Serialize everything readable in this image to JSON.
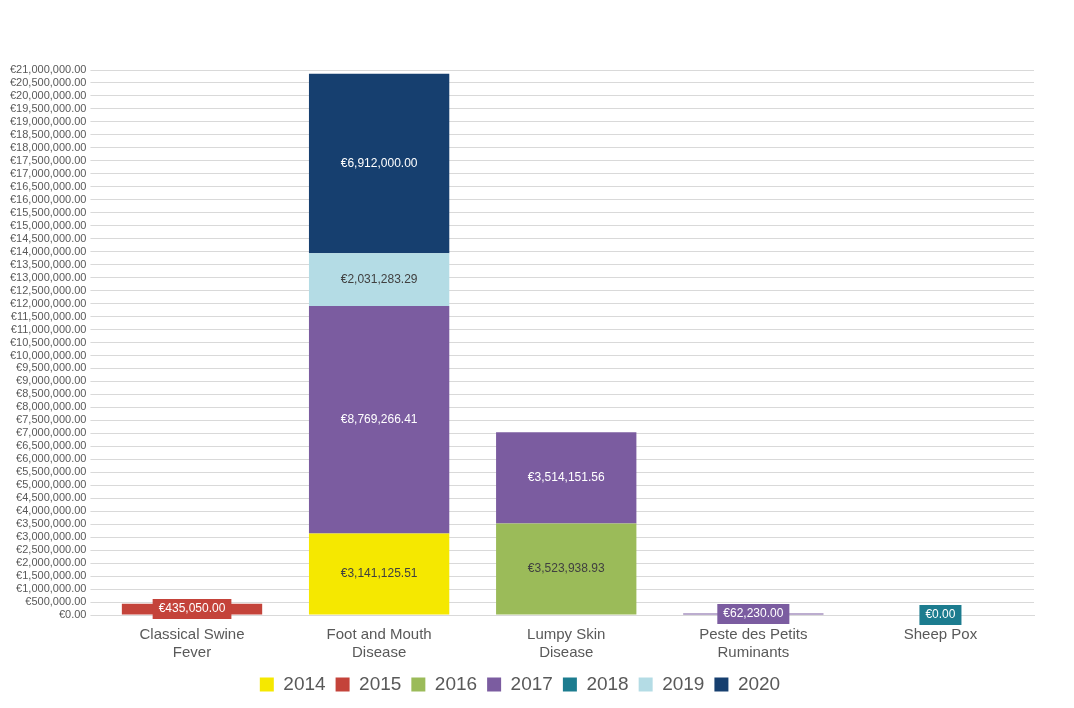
{
  "chart_data": {
    "type": "bar",
    "stacked": true,
    "grid": "y",
    "legend": "bottom",
    "categories": [
      "Classical Swine Fever",
      "Foot and Mouth Disease",
      "Lumpy Skin Disease",
      "Peste des Petits Ruminants",
      "Sheep Pox"
    ],
    "series": [
      {
        "name": "2014",
        "color": "#f5e800",
        "values": [
          null,
          3141125.51,
          null,
          null,
          null
        ],
        "value_labels": [
          null,
          "€3,141,125.51",
          null,
          null,
          null
        ]
      },
      {
        "name": "2015",
        "color": "#c4433a",
        "values": [
          435050,
          null,
          null,
          null,
          null
        ],
        "value_labels": [
          "€435,050.00",
          null,
          null,
          null,
          null
        ]
      },
      {
        "name": "2016",
        "color": "#9bbb59",
        "values": [
          null,
          null,
          3523938.93,
          null,
          null
        ],
        "value_labels": [
          null,
          null,
          "€3,523,938.93",
          null,
          null
        ]
      },
      {
        "name": "2017",
        "color": "#7b5ca0",
        "values": [
          null,
          8769266.41,
          3514151.56,
          62230,
          null
        ],
        "value_labels": [
          null,
          "€8,769,266.41",
          "€3,514,151.56",
          "€62,230.00",
          null
        ]
      },
      {
        "name": "2018",
        "color": "#1c7c8f",
        "values": [
          null,
          null,
          null,
          null,
          0
        ],
        "value_labels": [
          null,
          null,
          null,
          null,
          "€0.00"
        ]
      },
      {
        "name": "2019",
        "color": "#b4dce5",
        "values": [
          null,
          2031283.29,
          null,
          null,
          null
        ],
        "value_labels": [
          null,
          "€2,031,283.29",
          null,
          null,
          null
        ]
      },
      {
        "name": "2020",
        "color": "#163f6f",
        "values": [
          null,
          6912000,
          null,
          null,
          null
        ],
        "value_labels": [
          null,
          "€6,912,000.00",
          null,
          null,
          null
        ]
      }
    ],
    "ylim": [
      0,
      21000000
    ],
    "yticks": [
      {
        "value": 0,
        "label": "€0.00"
      },
      {
        "value": 500000,
        "label": "€500,000.00"
      },
      {
        "value": 1000000,
        "label": "€1,000,000.00"
      },
      {
        "value": 1500000,
        "label": "€1,500,000.00"
      },
      {
        "value": 2000000,
        "label": "€2,000,000.00"
      },
      {
        "value": 2500000,
        "label": "€2,500,000.00"
      },
      {
        "value": 3000000,
        "label": "€3,000,000.00"
      },
      {
        "value": 3500000,
        "label": "€3,500,000.00"
      },
      {
        "value": 4000000,
        "label": "€4,000,000.00"
      },
      {
        "value": 4500000,
        "label": "€4,500,000.00"
      },
      {
        "value": 5000000,
        "label": "€5,000,000.00"
      },
      {
        "value": 5500000,
        "label": "€5,500,000.00"
      },
      {
        "value": 6000000,
        "label": "€6,000,000.00"
      },
      {
        "value": 6500000,
        "label": "€6,500,000.00"
      },
      {
        "value": 7000000,
        "label": "€7,000,000.00"
      },
      {
        "value": 7500000,
        "label": "€7,500,000.00"
      },
      {
        "value": 8000000,
        "label": "€8,000,000.00"
      },
      {
        "value": 8500000,
        "label": "€8,500,000.00"
      },
      {
        "value": 9000000,
        "label": "€9,000,000.00"
      },
      {
        "value": 9500000,
        "label": "€9,500,000.00"
      },
      {
        "value": 10000000,
        "label": "€10,000,000.00"
      },
      {
        "value": 10500000,
        "label": "€10,500,000.00"
      },
      {
        "value": 11000000,
        "label": "€11,000,000.00"
      },
      {
        "value": 11500000,
        "label": "€11,500,000.00"
      },
      {
        "value": 12000000,
        "label": "€12,000,000.00"
      },
      {
        "value": 12500000,
        "label": "€12,500,000.00"
      },
      {
        "value": 13000000,
        "label": "€13,000,000.00"
      },
      {
        "value": 13500000,
        "label": "€13,500,000.00"
      },
      {
        "value": 14000000,
        "label": "€14,000,000.00"
      },
      {
        "value": 14500000,
        "label": "€14,500,000.00"
      },
      {
        "value": 15000000,
        "label": "€15,000,000.00"
      },
      {
        "value": 15500000,
        "label": "€15,500,000.00"
      },
      {
        "value": 16000000,
        "label": "€16,000,000.00"
      },
      {
        "value": 16500000,
        "label": "€16,500,000.00"
      },
      {
        "value": 17000000,
        "label": "€17,000,000.00"
      },
      {
        "value": 17500000,
        "label": "€17,500,000.00"
      },
      {
        "value": 18000000,
        "label": "€18,000,000.00"
      },
      {
        "value": 18500000,
        "label": "€18,500,000.00"
      },
      {
        "value": 19000000,
        "label": "€19,000,000.00"
      },
      {
        "value": 19500000,
        "label": "€19,500,000.00"
      },
      {
        "value": 20000000,
        "label": "€20,000,000.00"
      },
      {
        "value": 20500000,
        "label": "€20,500,000.00"
      },
      {
        "value": 21000000,
        "label": "€21,000,000.00"
      }
    ]
  }
}
